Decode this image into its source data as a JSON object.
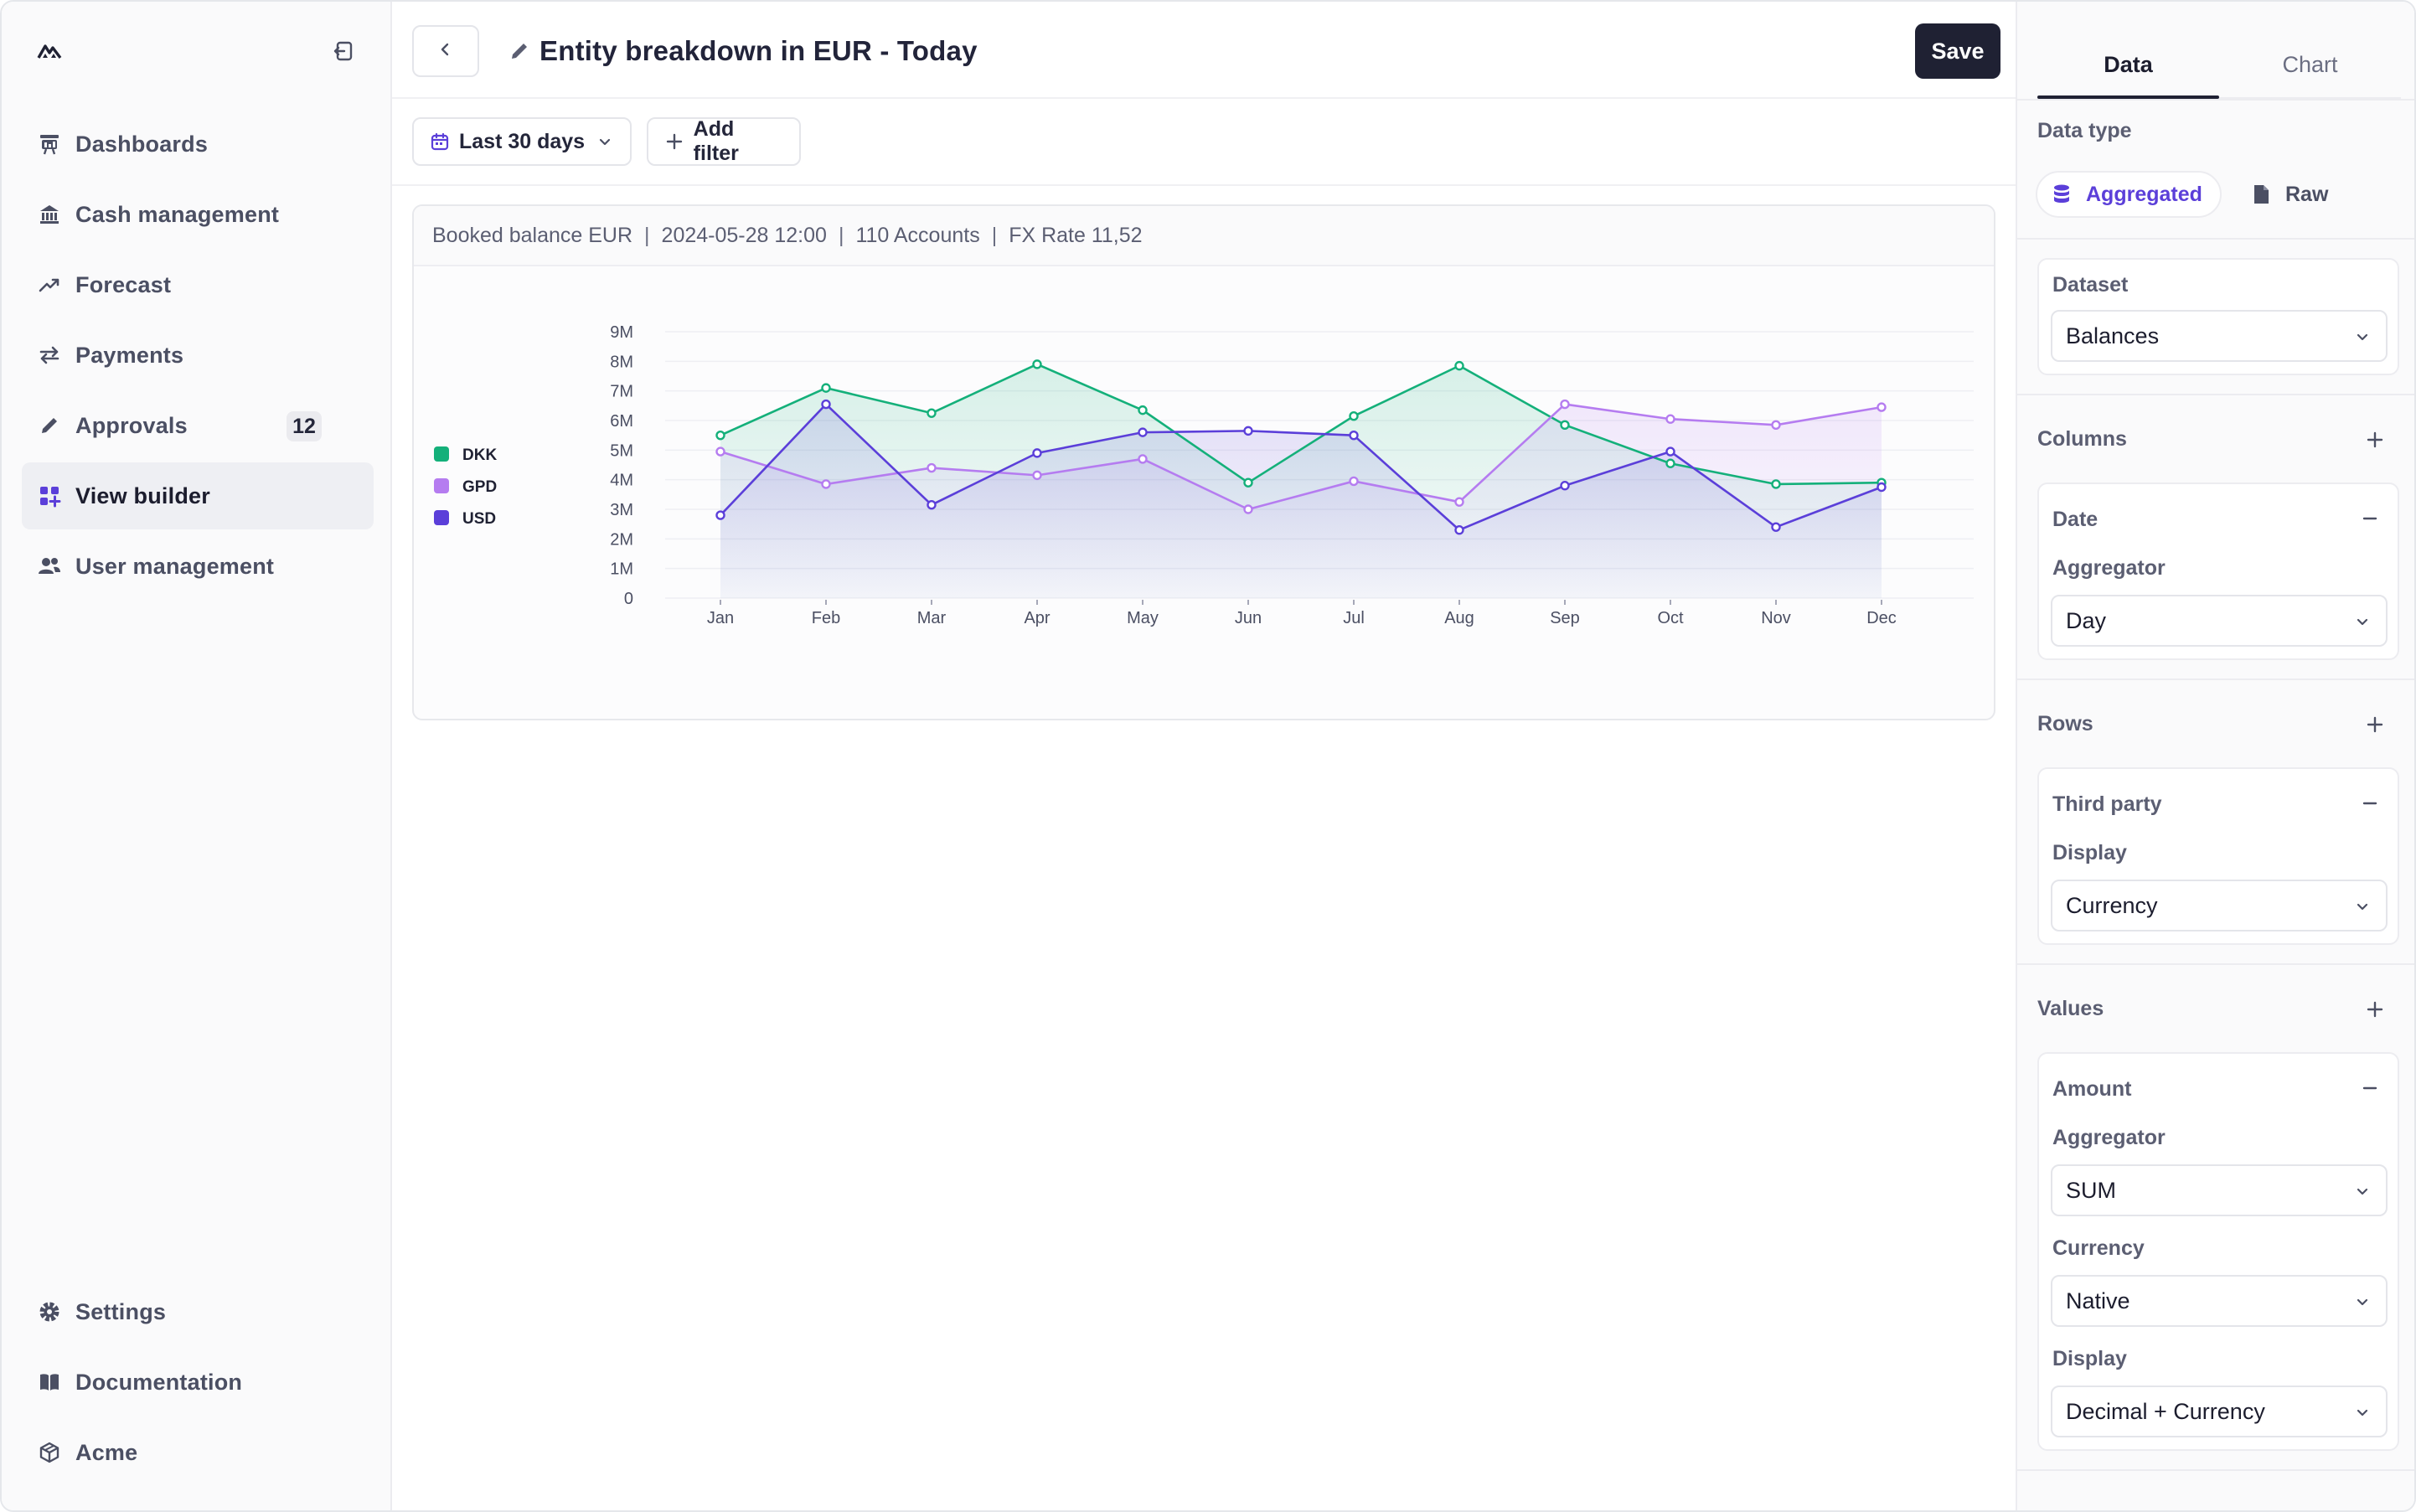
{
  "sidebar": {
    "logo_icon": "mountain-logo-icon",
    "collapse_icon": "sidebar-collapse-icon",
    "items": [
      {
        "label": "Dashboards",
        "icon": "dashboard-icon"
      },
      {
        "label": "Cash management",
        "icon": "bank-icon"
      },
      {
        "label": "Forecast",
        "icon": "trend-up-icon"
      },
      {
        "label": "Payments",
        "icon": "arrows-exchange-icon"
      },
      {
        "label": "Approvals",
        "icon": "pencil-icon",
        "badge": "12"
      },
      {
        "label": "View builder",
        "icon": "grid-plus-icon",
        "active": true
      },
      {
        "label": "User management",
        "icon": "users-icon"
      }
    ],
    "bottom_items": [
      {
        "label": "Settings",
        "icon": "gear-icon"
      },
      {
        "label": "Documentation",
        "icon": "book-icon"
      },
      {
        "label": "Acme",
        "icon": "cube-icon"
      }
    ]
  },
  "header": {
    "title": "Entity breakdown in EUR - Today",
    "save_label": "Save"
  },
  "filters": {
    "date_range": "Last 30 days",
    "add_filter": "Add filter"
  },
  "card": {
    "meta": [
      "Booked balance EUR",
      "2024-05-28 12:00",
      "110 Accounts",
      "FX Rate 11,52"
    ],
    "separator": "|"
  },
  "chart_data": {
    "type": "line",
    "categories": [
      "Jan",
      "Feb",
      "Mar",
      "Apr",
      "May",
      "Jun",
      "Jul",
      "Aug",
      "Sep",
      "Oct",
      "Nov",
      "Dec"
    ],
    "y_ticks": [
      "0",
      "1M",
      "2M",
      "3M",
      "4M",
      "5M",
      "6M",
      "7M",
      "8M",
      "9M"
    ],
    "ylim": [
      0,
      9000000
    ],
    "legend_position": "left",
    "grid": true,
    "series": [
      {
        "name": "DKK",
        "color": "#14b07a",
        "values": [
          5500000,
          7100000,
          6250000,
          7900000,
          6350000,
          3900000,
          6150000,
          7850000,
          5850000,
          4550000,
          3850000,
          3900000
        ]
      },
      {
        "name": "GPD",
        "color": "#b57cf0",
        "values": [
          4950000,
          3850000,
          4400000,
          4150000,
          4700000,
          3000000,
          3950000,
          3250000,
          6550000,
          6050000,
          5850000,
          6450000
        ]
      },
      {
        "name": "USD",
        "color": "#5b3fd9",
        "values": [
          2800000,
          6550000,
          3150000,
          4900000,
          5600000,
          5650000,
          5500000,
          2300000,
          3800000,
          4950000,
          2400000,
          3750000
        ]
      }
    ]
  },
  "panel": {
    "tabs": [
      "Data",
      "Chart"
    ],
    "data_type_label": "Data type",
    "data_type_options": [
      {
        "label": "Aggregated",
        "icon": "database-icon"
      },
      {
        "label": "Raw",
        "icon": "file-icon"
      }
    ],
    "dataset": {
      "label": "Dataset",
      "value": "Balances"
    },
    "columns": {
      "label": "Columns",
      "item": {
        "title": "Date",
        "sub_label": "Aggregator",
        "value": "Day"
      }
    },
    "rows": {
      "label": "Rows",
      "item": {
        "title": "Third party",
        "sub_label": "Display",
        "value": "Currency"
      }
    },
    "values": {
      "label": "Values",
      "item": {
        "title": "Amount",
        "aggregator_label": "Aggregator",
        "aggregator_value": "SUM",
        "currency_label": "Currency",
        "currency_value": "Native",
        "display_label": "Display",
        "display_value": "Decimal + Currency"
      }
    }
  }
}
